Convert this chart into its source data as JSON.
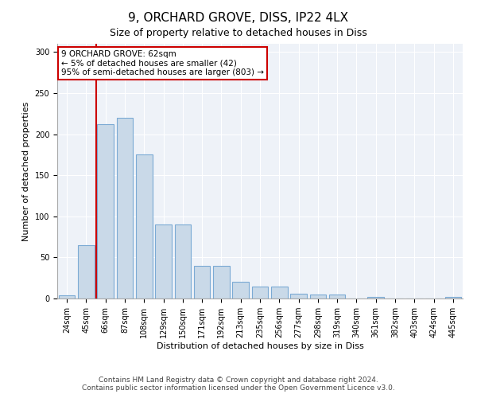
{
  "title": "9, ORCHARD GROVE, DISS, IP22 4LX",
  "subtitle": "Size of property relative to detached houses in Diss",
  "xlabel": "Distribution of detached houses by size in Diss",
  "ylabel": "Number of detached properties",
  "categories": [
    "24sqm",
    "45sqm",
    "66sqm",
    "87sqm",
    "108sqm",
    "129sqm",
    "150sqm",
    "171sqm",
    "192sqm",
    "213sqm",
    "235sqm",
    "256sqm",
    "277sqm",
    "298sqm",
    "319sqm",
    "340sqm",
    "361sqm",
    "382sqm",
    "403sqm",
    "424sqm",
    "445sqm"
  ],
  "values": [
    4,
    65,
    212,
    220,
    175,
    90,
    90,
    40,
    40,
    20,
    15,
    15,
    6,
    5,
    5,
    0,
    2,
    0,
    0,
    0,
    2
  ],
  "bar_color": "#c9d9e8",
  "bar_edge_color": "#7baad4",
  "vline_color": "#cc0000",
  "annotation_title": "9 ORCHARD GROVE: 62sqm",
  "annotation_line1": "← 5% of detached houses are smaller (42)",
  "annotation_line2": "95% of semi-detached houses are larger (803) →",
  "annotation_box_color": "#ffffff",
  "annotation_box_edge": "#cc0000",
  "ylim": [
    0,
    310
  ],
  "yticks": [
    0,
    50,
    100,
    150,
    200,
    250,
    300
  ],
  "background_color": "#eef2f8",
  "footer1": "Contains HM Land Registry data © Crown copyright and database right 2024.",
  "footer2": "Contains public sector information licensed under the Open Government Licence v3.0.",
  "title_fontsize": 11,
  "subtitle_fontsize": 9,
  "ylabel_fontsize": 8,
  "xlabel_fontsize": 8,
  "footer_fontsize": 6.5,
  "tick_fontsize": 7,
  "annotation_fontsize": 7.5
}
